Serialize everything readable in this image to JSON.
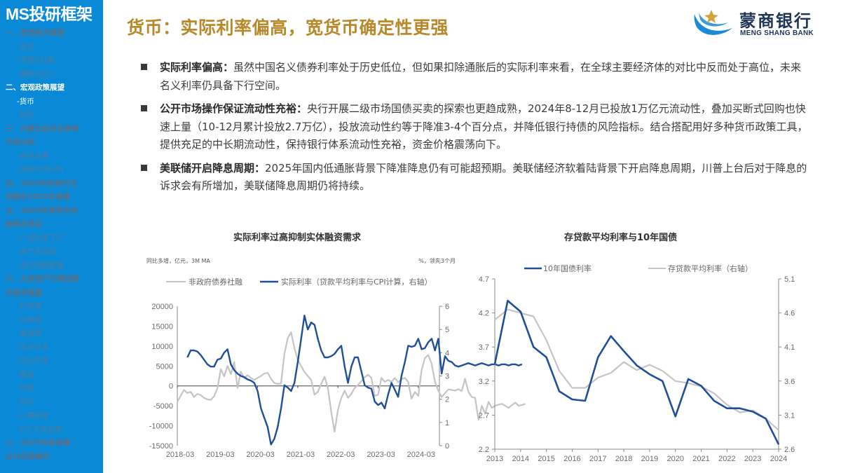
{
  "sidebar": {
    "title": "MS投研框架",
    "items": [
      {
        "label": "一、宏观经济展望",
        "level": "section",
        "active": false
      },
      {
        "label": "-投资",
        "level": "sub",
        "active": false
      },
      {
        "label": "-消费&社融",
        "level": "sub",
        "active": false
      },
      {
        "label": "-通胀&出口",
        "level": "sub",
        "active": false
      },
      {
        "label": "二、宏观政策展望",
        "level": "section",
        "active": true
      },
      {
        "label": "-货币",
        "level": "sub",
        "active": true
      },
      {
        "label": "-财政",
        "level": "sub",
        "active": false
      },
      {
        "label": "三、内蒙古经济及债券",
        "level": "section",
        "active": false
      },
      {
        "label": "市场分析",
        "level": "section",
        "active": false
      },
      {
        "label": "-经济发展",
        "level": "sub",
        "active": false
      },
      {
        "label": "-债券市场分析",
        "level": "sub",
        "active": false
      },
      {
        "label": "四、2024年机构行为",
        "level": "section",
        "active": false
      },
      {
        "label": "回顾及2025年展望",
        "level": "section",
        "active": false
      },
      {
        "label": "五、2025年债券市场",
        "level": "section",
        "active": false
      },
      {
        "label": "趋势及特点",
        "level": "section",
        "active": false
      },
      {
        "label": "-广谱利率下行",
        "level": "sub",
        "active": false
      },
      {
        "label": "-资产荒延续",
        "level": "sub",
        "active": false
      },
      {
        "label": "-央行预期管理",
        "level": "sub",
        "active": false
      },
      {
        "label": "六、大类资产行情回顾",
        "level": "section",
        "active": false
      },
      {
        "label": "及投资展望",
        "level": "section",
        "active": false
      },
      {
        "label": "-利率债",
        "level": "sub",
        "active": false
      },
      {
        "label": "-信用债",
        "level": "sub",
        "active": false
      },
      {
        "label": "-金融债",
        "level": "sub",
        "active": false
      },
      {
        "label": "-本币交易",
        "level": "sub",
        "active": false
      },
      {
        "label": "-同业存单",
        "level": "sub",
        "active": false
      },
      {
        "label": "-票据",
        "level": "sub",
        "active": false
      },
      {
        "label": "-非银",
        "level": "sub",
        "active": false
      },
      {
        "label": "-ABS",
        "level": "sub",
        "active": false
      },
      {
        "label": "-公募基金",
        "level": "sub",
        "active": false
      },
      {
        "label": "-外汇&贵金属",
        "level": "sub",
        "active": false
      },
      {
        "label": "七、2025年投资建",
        "level": "section",
        "active": false
      },
      {
        "label": "议与风险提示",
        "level": "section",
        "active": false
      }
    ]
  },
  "header": {
    "title": "货币：实际利率偏高，宽货币确定性更强",
    "logo_cn": "蒙商银行",
    "logo_en": "MENG SHANG BANK"
  },
  "bullets": [
    {
      "lead": "实际利率偏高：",
      "text": "虽然中国名义债券利率处于历史低位，但如果扣除通胀后的实际利率来看，在全球主要经济体的对比中反而处于高位，未来名义利率仍具备下行空间。"
    },
    {
      "lead": "公开市场操作保证流动性充裕：",
      "text": "央行开展二级市场国债买卖的探索也更趋成熟，2024年8-12月已投放1万亿元流动性，叠加买断式回购也快速上量（10-12月累计投放2.7万亿），投放流动性约等于降准3-4个百分点，并降低银行持债的风险指标。结合搭配用好多种货币政策工具，提供充足的中长期流动性，保持银行体系流动性充裕，资金价格震荡向下。"
    },
    {
      "lead": "美联储开启降息周期：",
      "text": "2025年国内低通胀背景下降准降息仍有可能超预期。美联储经济软着陆背景下开启降息周期，川普上台后对于降息的诉求会有所增加，美联储降息周期仍将持续。"
    }
  ],
  "colors": {
    "sidebar_bg": "#0a8ad6",
    "title_gold": "#b8892a",
    "series_blue": "#1f4e9a",
    "series_grey": "#c4c4c4"
  },
  "chart_data": [
    {
      "type": "line",
      "title": "实际利率过高抑制实体融资需求",
      "left_unit_note": "同比多增，亿元，3M MA",
      "right_unit_note": "%，领先3个月",
      "xlabel": "",
      "ylabel": "",
      "x_ticks": [
        "2018-03",
        "2019-03",
        "2020-03",
        "2021-03",
        "2022-03",
        "2023-03",
        "2024-03"
      ],
      "ylim_left": [
        -15000,
        20000
      ],
      "yticks_left": [
        20000,
        15000,
        10000,
        5000,
        0,
        -5000,
        -10000,
        -15000
      ],
      "ylim_right": [
        0,
        6
      ],
      "yticks_right": [
        6,
        5,
        4,
        3,
        2,
        1,
        0
      ],
      "grid": false,
      "legend_position": "top",
      "series": [
        {
          "name": "非政府债券社融",
          "axis": "left",
          "color": "#c4c4c4",
          "x_months": [
            0,
            1,
            2,
            3,
            4,
            5,
            6,
            7,
            8,
            9,
            10,
            11,
            12,
            13,
            14,
            15,
            16,
            17,
            18,
            19,
            20,
            21,
            22,
            23,
            24,
            25,
            26,
            27,
            28,
            29,
            30,
            31,
            32,
            33,
            34,
            35,
            36,
            37,
            38,
            39,
            40,
            41,
            42,
            43,
            44,
            45,
            46,
            47,
            48,
            49,
            50,
            51,
            52,
            53,
            54,
            55,
            56,
            57,
            58,
            59,
            60,
            61,
            62,
            63,
            64,
            65,
            66,
            67,
            68,
            69,
            70,
            71,
            72,
            73,
            74,
            75,
            76,
            77,
            78,
            79,
            80,
            81,
            82,
            83,
            84,
            85,
            86,
            87,
            88,
            89,
            90,
            91,
            92,
            93,
            94,
            95,
            96,
            97,
            98,
            99,
            100,
            101,
            102,
            103,
            104
          ],
          "values": [
            -4000,
            -2500,
            -1000,
            -1800,
            -1500,
            -2800,
            -2000,
            -2300,
            -3000,
            -3400,
            -3500,
            -2600,
            -500,
            4200,
            2400,
            5000,
            3000,
            6000,
            -500,
            3500,
            2000,
            2700,
            2000,
            1500,
            2000,
            2500,
            3100,
            3300,
            1800,
            700,
            500,
            600,
            8000,
            12000,
            13500,
            9500,
            6500,
            5000,
            3500,
            2500,
            1500,
            -2200,
            -1500,
            500,
            2300,
            -500,
            -6500,
            -11500,
            -6000,
            -3000,
            -1200,
            -3000,
            -2000,
            -500,
            200,
            1200,
            2200,
            2800,
            2000,
            -2500,
            -2200,
            2000,
            1000,
            1500,
            1000,
            2000,
            900,
            1700,
            2000,
            1000,
            -3200,
            -1500,
            -2500,
            4000,
            7000,
            7800,
            5500,
            1000,
            -1200,
            -2800,
            -1800,
            -900,
            -1000,
            -1200,
            -800,
            -1300,
            1800,
            -1500,
            -2800,
            -3000,
            -8500,
            -5000,
            -7000,
            -4000,
            -5500,
            -5000,
            -4700,
            -4500,
            -5000,
            -5500,
            -4800,
            -4200,
            -5000,
            -4800,
            -4500
          ],
          "note": "approximate monthly readings from 2018-03"
        },
        {
          "name": "实际利率（贷款平均利率与CPI计算，右轴）",
          "axis": "right",
          "color": "#1f4e9a",
          "x_months": [
            3,
            4,
            5,
            6,
            7,
            8,
            9,
            10,
            11,
            12,
            13,
            14,
            15,
            16,
            17,
            18,
            19,
            20,
            21,
            22,
            23,
            24,
            25,
            26,
            27,
            28,
            29,
            30,
            31,
            32,
            33,
            34,
            35,
            36,
            37,
            38,
            39,
            40,
            41,
            42,
            43,
            44,
            45,
            46,
            47,
            48,
            49,
            50,
            51,
            52,
            53,
            54,
            55,
            56,
            57,
            58,
            59,
            60,
            61,
            62,
            63,
            64,
            65,
            66,
            67,
            68,
            69,
            70,
            71,
            72,
            73,
            74,
            75,
            76,
            77,
            78,
            79,
            80,
            81,
            82,
            83,
            84,
            85,
            86,
            87,
            88,
            89,
            90,
            91,
            92,
            93,
            94,
            95,
            96,
            97,
            98,
            99,
            100,
            101,
            102,
            103
          ],
          "values": [
            3.8,
            4.1,
            4.1,
            4.05,
            3.9,
            3.7,
            3.5,
            3.4,
            3.4,
            3.7,
            3.75,
            4.0,
            4.15,
            3.5,
            3.25,
            3.1,
            3.0,
            2.95,
            2.85,
            2.8,
            2.7,
            2.35,
            1.6,
            1.2,
            0.8,
            0.05,
            0.3,
            0.8,
            1.6,
            2.6,
            2.5,
            2.35,
            2.7,
            3.6,
            4.6,
            5.6,
            5.0,
            5.3,
            5.2,
            4.6,
            4.1,
            3.8,
            3.8,
            3.85,
            3.95,
            4.15,
            4.3,
            3.4,
            2.7,
            3.4,
            3.8,
            3.8,
            3.2,
            2.6,
            2.5,
            2.45,
            1.9,
            1.75,
            1.85,
            1.6,
            2.2,
            2.7,
            2.4,
            2.1,
            3.0,
            3.6,
            4.3,
            4.25,
            4.3,
            4.6,
            4.15,
            4.2,
            4.45,
            4.6,
            4.1,
            4.6,
            3.1,
            3.85,
            3.65,
            3.6,
            3.45,
            3.4,
            3.45,
            3.5,
            3.55,
            3.5,
            3.45,
            3.5,
            3.55,
            3.5,
            3.45,
            3.5,
            3.5,
            3.45,
            3.5,
            3.5,
            3.45,
            3.5,
            3.5,
            3.45,
            3.5
          ],
          "note": "approximate monthly readings from 2018-06"
        }
      ]
    },
    {
      "type": "line",
      "title": "存贷款平均利率与10年国债",
      "xlabel": "",
      "ylabel": "",
      "categories": [
        "2013",
        "2014",
        "2015",
        "2016",
        "2017",
        "2018",
        "2019",
        "2020",
        "2021",
        "2022",
        "2023",
        "2024"
      ],
      "ylim_left": [
        2.2,
        4.7
      ],
      "yticks_left": [
        4.7,
        4.2,
        3.7,
        3.2,
        2.7,
        2.2
      ],
      "ylim_right": [
        2.6,
        5.1
      ],
      "yticks_right": [
        5.1,
        4.6,
        4.1,
        3.6,
        3.1,
        2.6
      ],
      "grid": false,
      "legend_position": "top",
      "x": [
        2013.0,
        2013.5,
        2014.0,
        2014.5,
        2015.0,
        2015.5,
        2016.0,
        2016.5,
        2017.0,
        2017.5,
        2018.0,
        2018.5,
        2019.0,
        2019.5,
        2020.0,
        2020.5,
        2021.0,
        2021.5,
        2022.0,
        2022.5,
        2023.0,
        2023.5,
        2024.0
      ],
      "series": [
        {
          "name": "10年国债利率",
          "axis": "left",
          "color": "#1f4e9a",
          "values": [
            3.45,
            4.38,
            4.22,
            3.7,
            3.55,
            3.05,
            2.93,
            2.91,
            3.55,
            3.86,
            3.64,
            3.43,
            3.3,
            3.2,
            2.68,
            3.23,
            3.13,
            2.91,
            2.8,
            2.8,
            2.75,
            2.65,
            2.27
          ]
        },
        {
          "name": "存贷款平均利率（右轴）",
          "axis": "right",
          "color": "#c4c4c4",
          "values": [
            4.5,
            4.65,
            4.6,
            4.55,
            4.2,
            3.75,
            3.5,
            3.5,
            3.65,
            3.72,
            3.88,
            3.76,
            3.84,
            3.75,
            3.6,
            3.57,
            3.52,
            3.42,
            3.25,
            3.14,
            3.17,
            3.05,
            2.88
          ]
        }
      ]
    }
  ]
}
